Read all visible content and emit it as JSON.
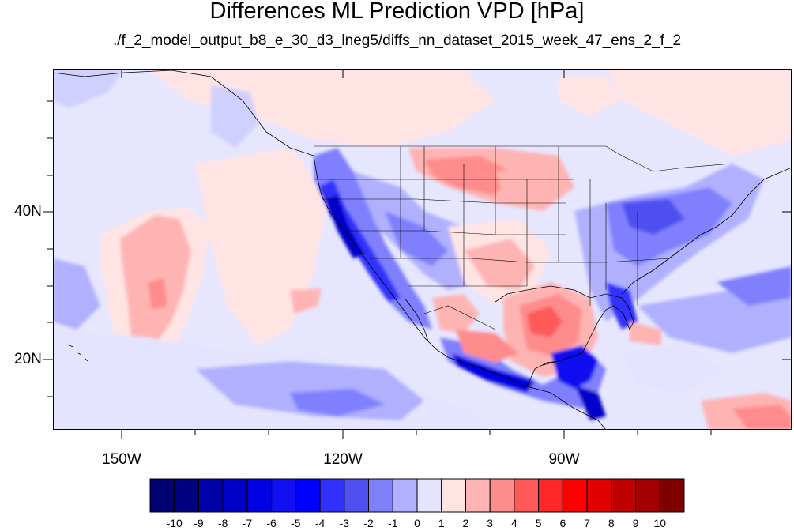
{
  "title": "Differences ML Prediction VPD [hPa]",
  "subtitle": "./f_2_model_output_b8_e_30_d3_lneg5/diffs_nn_dataset_2015_week_47_ens_2_f_2",
  "axes": {
    "lat_labels": [
      "40N",
      "20N"
    ],
    "lon_labels": [
      "150W",
      "120W",
      "90W"
    ]
  },
  "colorbar": {
    "labels": [
      "-10",
      "-9",
      "-8",
      "-7",
      "-6",
      "-5",
      "-4",
      "-3",
      "-2",
      "-1",
      "0",
      "1",
      "2",
      "3",
      "4",
      "5",
      "6",
      "7",
      "8",
      "9",
      "10"
    ],
    "colors": [
      "#000080",
      "#0000a8",
      "#0000c8",
      "#0000e0",
      "#1010f0",
      "#0000ff",
      "#3030ff",
      "#5050f0",
      "#8080ff",
      "#b0b0ff",
      "#e4e4ff",
      "#ffe4e4",
      "#ffb4b4",
      "#ff8c8c",
      "#ff5a5a",
      "#ff2828",
      "#ff0000",
      "#e00000",
      "#c00000",
      "#a00000",
      "#800000"
    ]
  },
  "chart_data": {
    "type": "heatmap",
    "title": "Differences ML Prediction VPD [hPa]",
    "subtitle": "./f_2_model_output_b8_e_30_d3_lneg5/diffs_nn_dataset_2015_week_47_ens_2_f_2",
    "units": "hPa",
    "x_ticks": [
      "150W",
      "120W",
      "90W"
    ],
    "y_ticks": [
      "40N",
      "20N"
    ],
    "color_range": [
      -10,
      10
    ],
    "colormap": "blue-white-red"
  }
}
